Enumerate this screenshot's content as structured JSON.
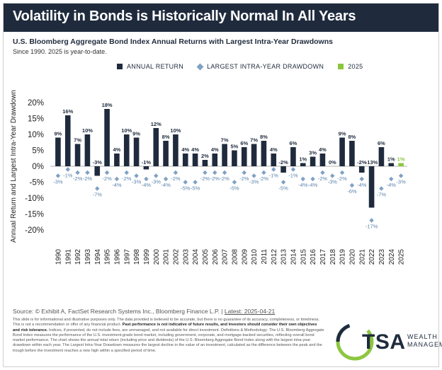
{
  "header": {
    "title": "Volatility in Bonds is Historically Normal In All Years",
    "subtitle": "U.S. Bloomberg Aggregate Bond Index Annual Returns with Largest Intra-Year Drawdowns",
    "note": "Since 1990. 2025 is year-to-date."
  },
  "legend": {
    "annual": "ANNUAL RETURN",
    "drawdown": "LARGEST INTRA-YEAR DRAWDOWN",
    "ytd": "2025"
  },
  "colors": {
    "annual": "#1f2b3d",
    "drawdown": "#7fa1c3",
    "ytd": "#8cc63f",
    "drawdown_label": "#5b84ad"
  },
  "chart_data": {
    "type": "bar",
    "ylabel": "Annual Return and Largest Intra-Year Drawdown",
    "ylim": [
      -20,
      20
    ],
    "yticks": [
      "20%",
      "15%",
      "10%",
      "5%",
      "0%",
      "-5%",
      "-10%",
      "-15%",
      "-20%"
    ],
    "grid": false,
    "legend_position": "top",
    "categories": [
      "1990",
      "1991",
      "1992",
      "1993",
      "1994",
      "1995",
      "1996",
      "1997",
      "1998",
      "1999",
      "2000",
      "2001",
      "2002",
      "2003",
      "2004",
      "2005",
      "2006",
      "2007",
      "2008",
      "2009",
      "2010",
      "2011",
      "2012",
      "2013",
      "2014",
      "2015",
      "2016",
      "2017",
      "2018",
      "2019",
      "2020",
      "2021",
      "2022",
      "2023",
      "2024",
      "2025"
    ],
    "series": [
      {
        "name": "ANNUAL RETURN",
        "values": [
          9,
          16,
          7,
          10,
          -3,
          18,
          4,
          10,
          9,
          -1,
          12,
          8,
          10,
          4,
          4,
          2,
          4,
          7,
          5,
          6,
          7,
          8,
          4,
          -2,
          6,
          1,
          3,
          4,
          0,
          9,
          8,
          -2,
          -13,
          6,
          1,
          1
        ],
        "labels": [
          "9%",
          "16%",
          "7%",
          "10%",
          "-3%",
          "18%",
          "4%",
          "10%",
          "9%",
          "-1%",
          "12%",
          "8%",
          "10%",
          "4%",
          "4%",
          "2%",
          "4%",
          "7%",
          "5%",
          "6%",
          "7%",
          "8%",
          "4%",
          "-2%",
          "6%",
          "1%",
          "3%",
          "4%",
          "0%",
          "9%",
          "8%",
          "-2%",
          "-13%",
          "6%",
          "1%",
          "1%"
        ]
      },
      {
        "name": "LARGEST INTRA-YEAR DRAWDOWN",
        "values": [
          -3,
          -1,
          -2,
          -2,
          -7,
          -2,
          -4,
          -2,
          -3,
          -4,
          -3,
          -4,
          -2,
          -5,
          -5,
          -2,
          -2,
          -2,
          -5,
          -2,
          -3,
          -2,
          -1,
          -5,
          -1,
          -4,
          -4,
          -2,
          -3,
          -2,
          -6,
          -4,
          -17,
          -7,
          -4,
          -3
        ],
        "labels": [
          "-3%",
          "-1%",
          "-2%",
          "-2%",
          "-7%",
          "-2%",
          "-4%",
          "-2%",
          "-3%",
          "-4%",
          "-3%",
          "-4%",
          "-2%",
          "-5%",
          "-5%",
          "-2%",
          "-2%",
          "-2%",
          "-5%",
          "-2%",
          "-3%",
          "-2%",
          "-1%",
          "-5%",
          "-1%",
          "-4%",
          "-4%",
          "-2%",
          "-3%",
          "-2%",
          "-6%",
          "-4%",
          "-17%",
          "-7%",
          "-4%",
          "-3%"
        ]
      }
    ],
    "ytd_category": "2025"
  },
  "footer": {
    "source_prefix": "Source: © Exhibit A, FactSet Research Systems Inc., Bloomberg Finance L.P. | ",
    "source_latest": "Latest: 2025-04-21",
    "disclaimer_1": "This slide is for informational and illustrative purposes only. The data provided is believed to be accurate, but there is no guarantee of its accuracy, completeness, or timeliness. This is not a recommendation or offer of any financial product. ",
    "disclaimer_bold": "Past performance is not indicative of future results, and investors should consider their own objectives and risk tolerance.",
    "disclaimer_2": " Indices, if presented, do not include fees, are unmanaged, and not available for direct investment. Definitions & Methodology: The U.S. Bloomberg Aggregate Bond Index measures the performance of the U.S. investment-grade bond market, including government, corporate, and mortgage-backed securities, reflecting overall bond market performance. The chart shows the annual total return (including price and dividends) of the U.S. Bloomberg Aggregate Bond Index along with the largest intra-year drawdown within each year. The Largest Intra-Year Drawdown measures the largest decline in the value of an investment, calculated as the difference between the peak and the trough before the investment reaches a new high within a specified period of time."
  },
  "logo": {
    "main": "TSA",
    "line1": "WEALTH",
    "line2": "MANAGEMENT"
  }
}
